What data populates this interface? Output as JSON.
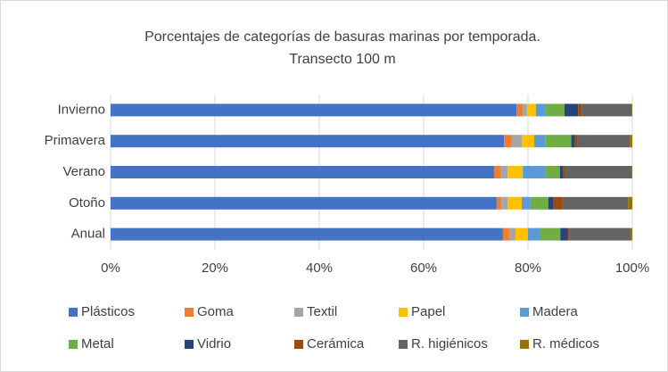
{
  "chart_data": {
    "type": "stacked_barh",
    "title": "Porcentajes de categorías de basuras marinas por temporada.",
    "subtitle": "Transecto 100 m",
    "categories": [
      "Invierno",
      "Primavera",
      "Verano",
      "Otoño",
      "Anual"
    ],
    "series": [
      {
        "name": "Plásticos",
        "color": "#4472c4",
        "values": [
          77.8,
          75.4,
          73.5,
          74.0,
          75.2
        ]
      },
      {
        "name": "Goma",
        "color": "#ed7d31",
        "values": [
          1.2,
          1.5,
          1.2,
          0.9,
          1.2
        ]
      },
      {
        "name": "Textil",
        "color": "#a5a5a5",
        "values": [
          0.8,
          1.9,
          1.4,
          1.2,
          1.2
        ]
      },
      {
        "name": "Papel",
        "color": "#ffc000",
        "values": [
          1.7,
          2.4,
          2.9,
          2.7,
          2.4
        ]
      },
      {
        "name": "Madera",
        "color": "#5b9bd5",
        "values": [
          1.9,
          2.1,
          4.4,
          1.7,
          2.4
        ]
      },
      {
        "name": "Metal",
        "color": "#70ad47",
        "values": [
          3.6,
          5.0,
          2.7,
          3.4,
          3.8
        ]
      },
      {
        "name": "Vidrio",
        "color": "#264478",
        "values": [
          2.6,
          0.7,
          0.7,
          1.0,
          1.4
        ]
      },
      {
        "name": "Cerámica",
        "color": "#9e480e",
        "values": [
          0.7,
          0.5,
          0.3,
          1.7,
          0.3
        ]
      },
      {
        "name": "R. higiénicos",
        "color": "#636363",
        "values": [
          9.6,
          10.0,
          12.8,
          12.6,
          11.9
        ]
      },
      {
        "name": "R. médicos",
        "color": "#997300",
        "values": [
          0.1,
          0.5,
          0.1,
          0.8,
          0.2
        ]
      }
    ],
    "xlim": [
      0,
      100
    ],
    "xticks": [
      {
        "value": 0,
        "label": "0%"
      },
      {
        "value": 20,
        "label": "20%"
      },
      {
        "value": 40,
        "label": "40%"
      },
      {
        "value": 60,
        "label": "60%"
      },
      {
        "value": 80,
        "label": "80%"
      },
      {
        "value": 100,
        "label": "100%"
      }
    ],
    "grid": true,
    "legend": "bottom"
  }
}
